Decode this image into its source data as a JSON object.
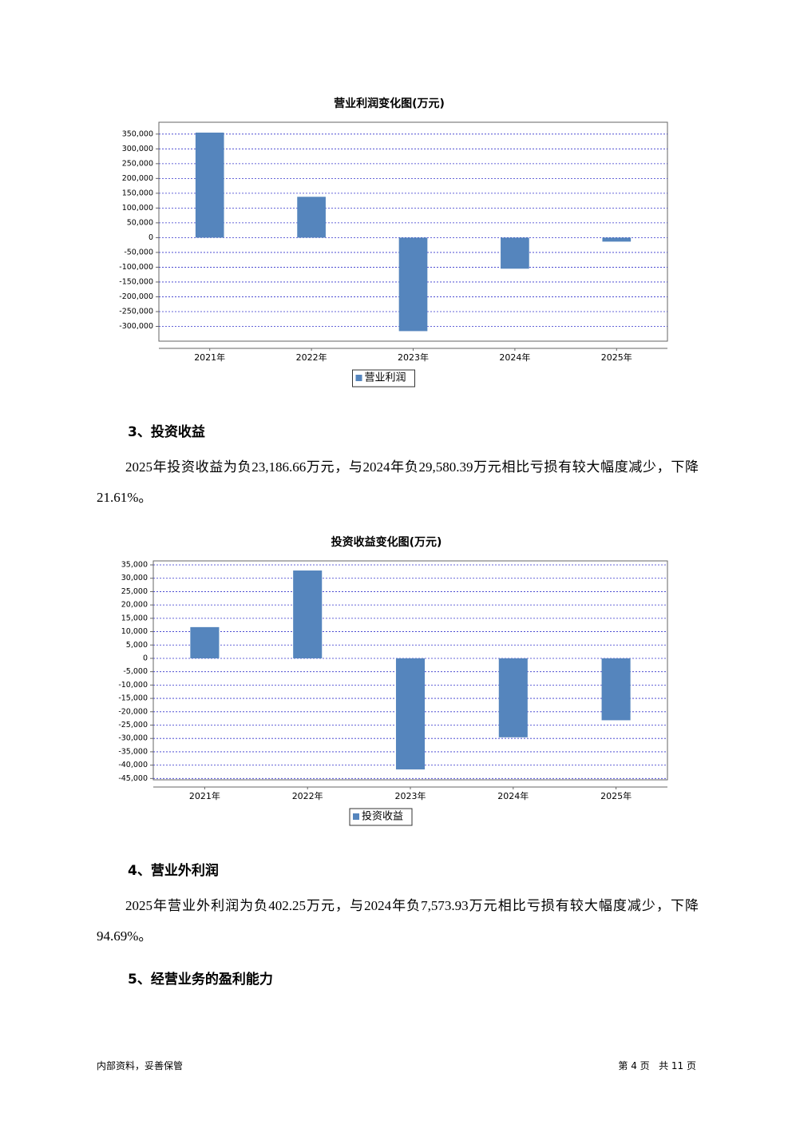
{
  "chart_data": [
    {
      "type": "bar",
      "title": "营业利润变化图(万元)",
      "categories": [
        "2021年",
        "2022年",
        "2023年",
        "2024年",
        "2025年"
      ],
      "series": [
        {
          "name": "营业利润",
          "color": "#5585bd",
          "values": [
            355000,
            138000,
            -316000,
            -105000,
            -13500
          ]
        }
      ],
      "ylim": [
        -350000,
        390000
      ],
      "yticks": [
        {
          "value": 350000,
          "label": "350,000"
        },
        {
          "value": 300000,
          "label": "300,000"
        },
        {
          "value": 250000,
          "label": "250,000"
        },
        {
          "value": 200000,
          "label": "200,000"
        },
        {
          "value": 150000,
          "label": "150,000"
        },
        {
          "value": 100000,
          "label": "100,000"
        },
        {
          "value": 50000,
          "label": "50,000"
        },
        0,
        {
          "value": -50000,
          "label": "-50,000"
        },
        {
          "value": -100000,
          "label": "-100,000"
        },
        {
          "value": -150000,
          "label": "-150,000"
        },
        {
          "value": -200000,
          "label": "-200,000"
        },
        {
          "value": -250000,
          "label": "-250,000"
        },
        {
          "value": -300000,
          "label": "-300,000"
        }
      ],
      "grid": true,
      "legend": "bottom"
    },
    {
      "type": "bar",
      "title": "投资收益变化图(万元)",
      "categories": [
        "2021年",
        "2022年",
        "2023年",
        "2024年",
        "2025年"
      ],
      "series": [
        {
          "name": "投资收益",
          "color": "#5585bd",
          "values": [
            11700,
            32900,
            -41600,
            -29580.39,
            -23186.66
          ]
        }
      ],
      "ylim": [
        -45500,
        36500
      ],
      "yticks": [
        {
          "value": 35000,
          "label": "35,000"
        },
        {
          "value": 30000,
          "label": "30,000"
        },
        {
          "value": 25000,
          "label": "25,000"
        },
        {
          "value": 20000,
          "label": "20,000"
        },
        {
          "value": 15000,
          "label": "15,000"
        },
        {
          "value": 10000,
          "label": "10,000"
        },
        {
          "value": 5000,
          "label": "5,000"
        },
        0,
        {
          "value": -5000,
          "label": "-5,000"
        },
        {
          "value": -10000,
          "label": "-10,000"
        },
        {
          "value": -15000,
          "label": "-15,000"
        },
        {
          "value": -20000,
          "label": "-20,000"
        },
        {
          "value": -25000,
          "label": "-25,000"
        },
        {
          "value": -30000,
          "label": "-30,000"
        },
        {
          "value": -35000,
          "label": "-35,000"
        },
        {
          "value": -40000,
          "label": "-40,000"
        },
        {
          "value": -45000,
          "label": "-45,000"
        }
      ],
      "grid": true,
      "legend": "bottom"
    }
  ],
  "sections": [
    {
      "heading": "3、投资收益",
      "paragraph": "2025年投资收益为负23,186.66万元，与2024年负29,580.39万元相比亏损有较大幅度减少，下降21.61%。"
    },
    {
      "heading": "4、营业外利润",
      "paragraph": "2025年营业外利润为负402.25万元，与2024年负7,573.93万元相比亏损有较大幅度减少，下降94.69%。"
    },
    {
      "heading": "5、经营业务的盈利能力"
    }
  ],
  "footer": {
    "left": "内部资料，妥善保管",
    "right": "第 4 页   共 11 页"
  }
}
